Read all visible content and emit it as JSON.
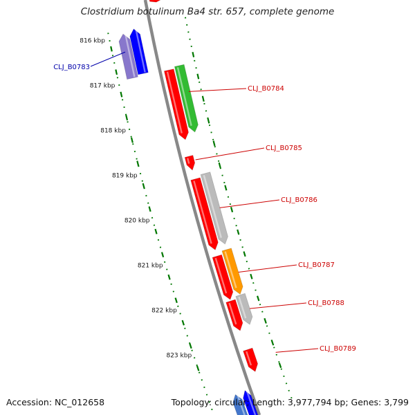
{
  "title": "Clostridium botulinum Ba4 str. 657, complete genome",
  "accession_text": "Accession: NC_012658",
  "summary_text": "Topology: circular; Length: 3,977,794 bp; Genes: 3,799",
  "scale_labels": [
    "816 kbp",
    "817 kbp",
    "818 kbp",
    "819 kbp",
    "820 kbp",
    "821 kbp",
    "822 kbp",
    "823 kbp"
  ],
  "gene_labels": [
    {
      "text": "CLJ_B0783",
      "color": "#0000aa"
    },
    {
      "text": "CLJ_B0784",
      "color": "#cc0000"
    },
    {
      "text": "CLJ_B0785",
      "color": "#cc0000"
    },
    {
      "text": "CLJ_B0786",
      "color": "#cc0000"
    },
    {
      "text": "CLJ_B0787",
      "color": "#cc0000"
    },
    {
      "text": "CLJ_B0788",
      "color": "#cc0000"
    },
    {
      "text": "CLJ_B0789",
      "color": "#cc0000"
    }
  ],
  "colors": {
    "backbone": "#888888",
    "scale_dots": "#007700",
    "cds_red": "#ff0000",
    "cds_blue": "#0000ff",
    "cds_purple": "#8877cc",
    "cds_green": "#33bb33",
    "cds_gray": "#bbbbbb",
    "cds_orange": "#ff9900",
    "label_blue": "#0000aa",
    "label_red": "#cc0000"
  }
}
